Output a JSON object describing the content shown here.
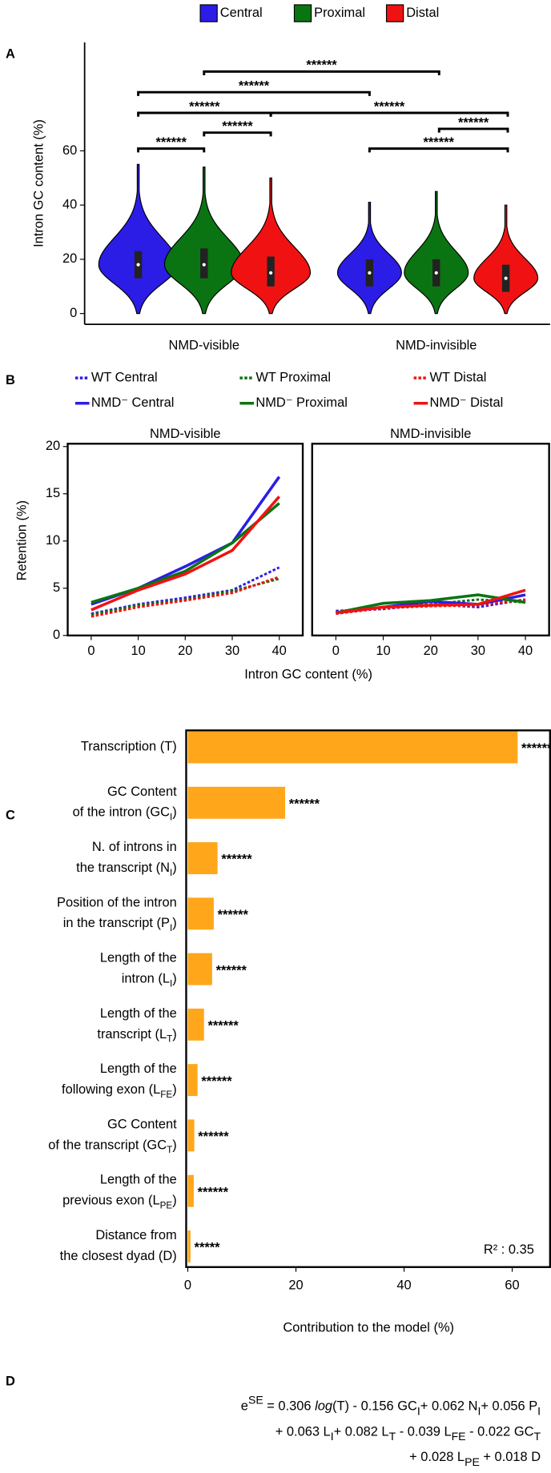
{
  "panel_labels": [
    "A",
    "B",
    "C",
    "D"
  ],
  "chart_data": [
    {
      "type": "violin",
      "ylabel": "Intron GC content (%)",
      "categories": [
        "NMD-visible",
        "NMD-invisible"
      ],
      "series": [
        {
          "name": "Central",
          "color": "#2b1de6",
          "values": [
            18,
            15
          ],
          "q1": [
            13,
            10
          ],
          "q3": [
            23,
            20
          ],
          "max": [
            55,
            41
          ]
        },
        {
          "name": "Proximal",
          "color": "#0b7412",
          "values": [
            18,
            15
          ],
          "q1": [
            13,
            10
          ],
          "q3": [
            24,
            20
          ],
          "max": [
            54,
            45
          ]
        },
        {
          "name": "Distal",
          "color": "#f01212",
          "values": [
            15,
            13
          ],
          "q1": [
            10,
            8
          ],
          "q3": [
            21,
            18
          ],
          "max": [
            50,
            40
          ]
        }
      ],
      "ylim": [
        -4,
        100
      ],
      "yticks": [
        0,
        20,
        40,
        60
      ],
      "significance": [
        "******",
        "******",
        "******",
        "******",
        "******",
        "******",
        "******",
        "******",
        "******"
      ]
    },
    {
      "type": "line",
      "title": "NMD-visible",
      "ylabel": "Retention (%)",
      "xlabel": "Intron GC content (%)",
      "x": [
        0,
        10,
        20,
        30,
        40
      ],
      "series": [
        {
          "name": "WT Central",
          "color": "#2b1de6",
          "dash": true,
          "values": [
            2.3,
            3.3,
            4.0,
            4.8,
            7.2
          ]
        },
        {
          "name": "WT Proximal",
          "color": "#0b7412",
          "dash": true,
          "values": [
            2.2,
            3.2,
            3.8,
            4.7,
            6.0
          ]
        },
        {
          "name": "WT Distal",
          "color": "#f01212",
          "dash": true,
          "values": [
            2.0,
            3.0,
            3.7,
            4.5,
            6.2
          ]
        },
        {
          "name": "NMD⁻ Central",
          "color": "#2b1de6",
          "dash": false,
          "values": [
            3.3,
            5.0,
            7.3,
            9.8,
            16.8
          ]
        },
        {
          "name": "NMD⁻ Proximal",
          "color": "#0b7412",
          "dash": false,
          "values": [
            3.5,
            5.0,
            6.8,
            9.8,
            14.0
          ]
        },
        {
          "name": "NMD⁻ Distal",
          "color": "#f01212",
          "dash": false,
          "values": [
            2.7,
            4.8,
            6.5,
            9.0,
            14.7
          ]
        }
      ],
      "xlim": [
        -5,
        45
      ],
      "xticks": [
        0,
        10,
        20,
        30,
        40
      ],
      "ylim": [
        0,
        20
      ],
      "yticks": [
        0,
        5,
        10,
        15,
        20
      ]
    },
    {
      "type": "line",
      "title": "NMD-invisible",
      "x": [
        0,
        10,
        20,
        30,
        40
      ],
      "series": [
        {
          "color": "#2b1de6",
          "dash": true,
          "values": [
            2.6,
            2.8,
            3.3,
            3.0,
            3.8
          ]
        },
        {
          "color": "#0b7412",
          "dash": true,
          "values": [
            2.4,
            3.0,
            3.3,
            3.8,
            3.5
          ]
        },
        {
          "color": "#f01212",
          "dash": true,
          "values": [
            2.3,
            2.9,
            3.1,
            3.2,
            3.8
          ]
        },
        {
          "color": "#2b1de6",
          "dash": false,
          "values": [
            2.4,
            3.0,
            3.6,
            3.3,
            4.3
          ]
        },
        {
          "color": "#0b7412",
          "dash": false,
          "values": [
            2.4,
            3.4,
            3.7,
            4.3,
            3.5
          ]
        },
        {
          "color": "#f01212",
          "dash": false,
          "values": [
            2.4,
            3.0,
            3.2,
            3.3,
            4.8
          ]
        }
      ],
      "xlim": [
        -5,
        45
      ],
      "xticks": [
        0,
        10,
        20,
        30,
        40
      ],
      "ylim": [
        0,
        20
      ]
    },
    {
      "type": "hbar",
      "color": "#ffa61a",
      "xlabel": "Contribution to the model (%)",
      "annotation": "R² : 0.35",
      "categories": [
        {
          "lines": [
            "Transcription (T)"
          ]
        },
        {
          "lines": [
            "GC Content",
            "of the intron (GC"
          ],
          "sub": "I",
          "tail": ")"
        },
        {
          "lines": [
            "N. of introns in",
            "the transcript (N"
          ],
          "sub": "I",
          "tail": ")"
        },
        {
          "lines": [
            "Position of the intron",
            "in the transcript (P"
          ],
          "sub": "I",
          "tail": ")"
        },
        {
          "lines": [
            "Length of the",
            "intron (L"
          ],
          "sub": "I",
          "tail": ")"
        },
        {
          "lines": [
            "Length of the",
            "transcript (L"
          ],
          "sub": "T",
          "tail": ")"
        },
        {
          "lines": [
            "Length of the",
            "following exon (L"
          ],
          "sub": "FE",
          "tail": ")"
        },
        {
          "lines": [
            "GC Content",
            "of the transcript (GC"
          ],
          "sub": "T",
          "tail": ")"
        },
        {
          "lines": [
            "Length of the",
            "previous exon (L"
          ],
          "sub": "PE",
          "tail": ")"
        },
        {
          "lines": [
            "Distance from",
            "the closest dyad (D)"
          ]
        }
      ],
      "values": [
        61,
        18,
        5.5,
        4.8,
        4.5,
        3,
        1.8,
        1.2,
        1.1,
        0.5
      ],
      "significance": [
        "******",
        "******",
        "******",
        "******",
        "******",
        "******",
        "******",
        "******",
        "******",
        "*****"
      ],
      "xlim": [
        -0.3,
        67
      ],
      "xticks": [
        0,
        20,
        40,
        60
      ]
    }
  ],
  "equation": [
    [
      {
        "text": "e"
      },
      {
        "text": "SE",
        "style": "sup"
      },
      {
        "text": " = 0.306 "
      },
      {
        "text": "log",
        "style": "i"
      },
      {
        "text": "(T) - 0.156 GC"
      },
      {
        "text": "I",
        "style": "sub"
      },
      {
        "text": "+ 0.062 N"
      },
      {
        "text": "I",
        "style": "sub"
      },
      {
        "text": "+ 0.056 P"
      },
      {
        "text": "I",
        "style": "sub"
      }
    ],
    [
      {
        "text": "+ 0.063 L"
      },
      {
        "text": "I",
        "style": "sub"
      },
      {
        "text": "+ 0.082 L"
      },
      {
        "text": "T",
        "style": "sub"
      },
      {
        "text": " - 0.039 L"
      },
      {
        "text": "FE",
        "style": "sub"
      },
      {
        "text": " - 0.022 GC"
      },
      {
        "text": "T",
        "style": "sub"
      }
    ],
    [
      {
        "text": "+ 0.028 L"
      },
      {
        "text": "PE",
        "style": "sub"
      },
      {
        "text": " + 0.018 D"
      }
    ]
  ]
}
